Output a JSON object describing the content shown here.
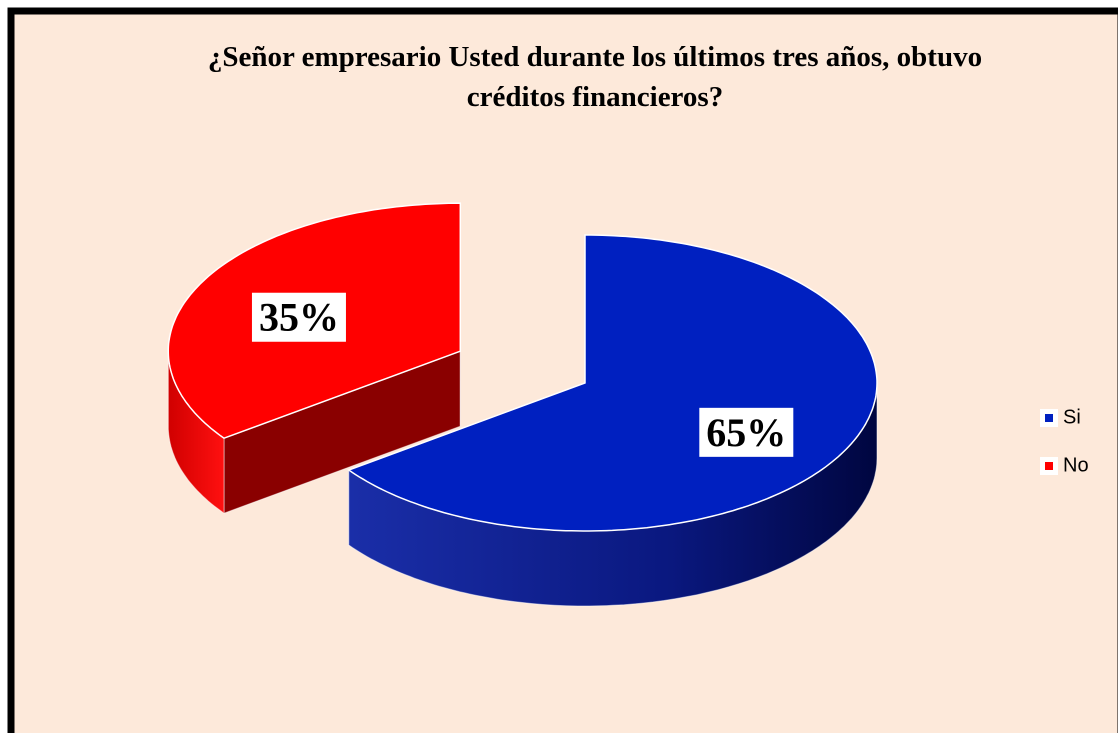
{
  "chart_data": {
    "type": "pie",
    "title": "¿Señor empresario Usted durante los últimos tres años, obtuvo créditos financieros?",
    "categories": [
      "Si",
      "No"
    ],
    "values": [
      65,
      35
    ],
    "value_labels": [
      "65%",
      "35%"
    ],
    "colors": [
      "#0020c0",
      "#ff0000"
    ],
    "legend": "right",
    "exploded": true
  }
}
